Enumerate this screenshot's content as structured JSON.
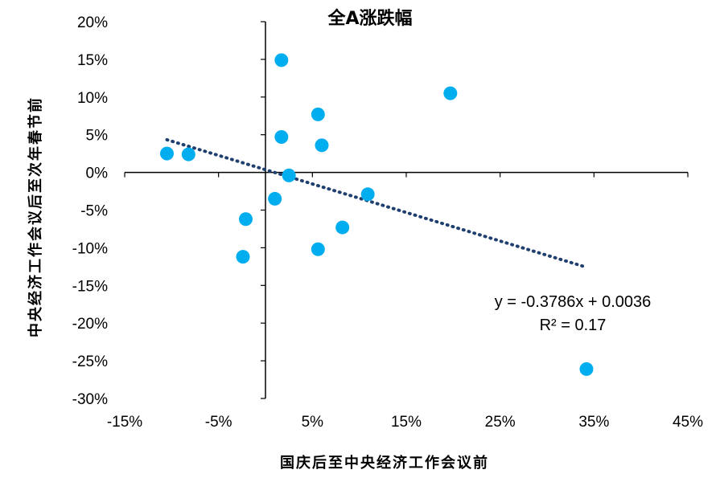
{
  "chart_data": {
    "type": "scatter",
    "title": "全A涨跌幅",
    "xlabel": "国庆后至中央经济工作会议前",
    "ylabel": "中央经济工作会议后至次年春节前",
    "xlim": [
      -0.15,
      0.45
    ],
    "ylim": [
      -0.3,
      0.2
    ],
    "xticks": [
      -0.15,
      -0.05,
      0.05,
      0.15,
      0.25,
      0.35,
      0.45
    ],
    "xtick_labels": [
      "-15%",
      "-5%",
      "5%",
      "15%",
      "25%",
      "35%",
      "45%"
    ],
    "yticks": [
      0.2,
      0.15,
      0.1,
      0.05,
      0.0,
      -0.05,
      -0.1,
      -0.15,
      -0.2,
      -0.25,
      -0.3
    ],
    "ytick_labels": [
      "20%",
      "15%",
      "10%",
      "5%",
      "0%",
      "-5%",
      "-10%",
      "-15%",
      "-20%",
      "-25%",
      "-30%"
    ],
    "grid": false,
    "marker_color": "#00aeef",
    "trend_color": "#1f3f6e",
    "points": [
      {
        "x": -0.105,
        "y": 0.025
      },
      {
        "x": -0.082,
        "y": 0.024
      },
      {
        "x": -0.021,
        "y": -0.062
      },
      {
        "x": -0.024,
        "y": -0.112
      },
      {
        "x": 0.01,
        "y": -0.035
      },
      {
        "x": 0.017,
        "y": 0.149
      },
      {
        "x": 0.017,
        "y": 0.047
      },
      {
        "x": 0.025,
        "y": -0.004
      },
      {
        "x": 0.056,
        "y": 0.077
      },
      {
        "x": 0.06,
        "y": 0.036
      },
      {
        "x": 0.056,
        "y": -0.102
      },
      {
        "x": 0.082,
        "y": -0.073
      },
      {
        "x": 0.109,
        "y": -0.029
      },
      {
        "x": 0.197,
        "y": 0.105
      },
      {
        "x": 0.342,
        "y": -0.261
      }
    ],
    "trendline": {
      "slope": -0.3786,
      "intercept": 0.0036,
      "x_range": [
        -0.105,
        0.342
      ],
      "equation": "y = -0.3786x + 0.0036",
      "r_squared": "R² = 0.17"
    }
  }
}
